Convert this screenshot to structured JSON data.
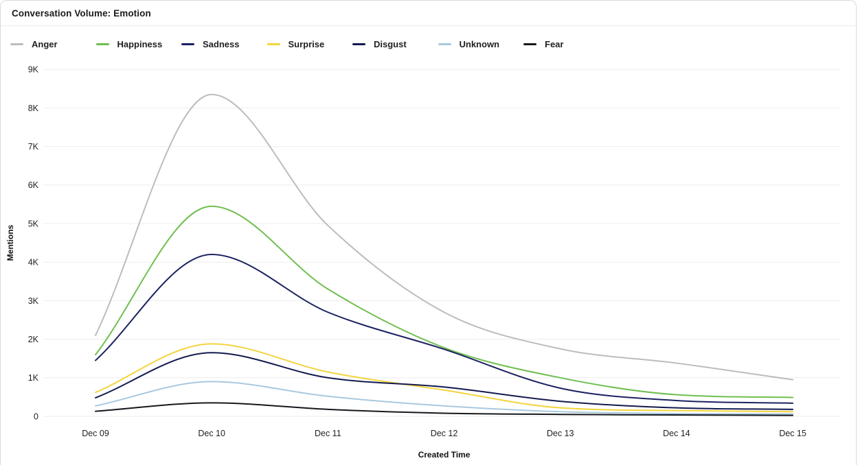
{
  "header": {
    "title": "Conversation Volume: Emotion"
  },
  "chart_data": {
    "type": "line",
    "title": "Conversation Volume: Emotion",
    "xlabel": "Created Time",
    "ylabel": "Mentions",
    "categories": [
      "Dec 09",
      "Dec 10",
      "Dec 11",
      "Dec 12",
      "Dec 13",
      "Dec 14",
      "Dec 15"
    ],
    "y_ticks": [
      "0",
      "1K",
      "2K",
      "3K",
      "4K",
      "5K",
      "6K",
      "7K",
      "8K",
      "9K"
    ],
    "ylim": [
      0,
      9000
    ],
    "grid": true,
    "smooth": true,
    "legend_position": "top",
    "series": [
      {
        "name": "Anger",
        "color": "#bcbcbc",
        "values": [
          2100,
          8350,
          4950,
          2700,
          1750,
          1380,
          950
        ]
      },
      {
        "name": "Happiness",
        "color": "#6fbe4f",
        "values": [
          1600,
          5450,
          3300,
          1780,
          1000,
          560,
          490
        ]
      },
      {
        "name": "Sadness",
        "color": "#1b2161",
        "values": [
          1450,
          4200,
          2700,
          1740,
          730,
          410,
          340
        ]
      },
      {
        "name": "Surprise",
        "color": "#f3d43c",
        "values": [
          620,
          1880,
          1150,
          680,
          220,
          150,
          120
        ]
      },
      {
        "name": "Disgust",
        "color": "#121a4e",
        "values": [
          480,
          1650,
          1000,
          760,
          390,
          220,
          180
        ]
      },
      {
        "name": "Unknown",
        "color": "#a8c9df",
        "values": [
          270,
          900,
          520,
          270,
          120,
          70,
          60
        ]
      },
      {
        "name": "Fear",
        "color": "#15181d",
        "values": [
          130,
          350,
          180,
          80,
          50,
          35,
          25
        ]
      }
    ],
    "gridline_color": "#ededed"
  }
}
